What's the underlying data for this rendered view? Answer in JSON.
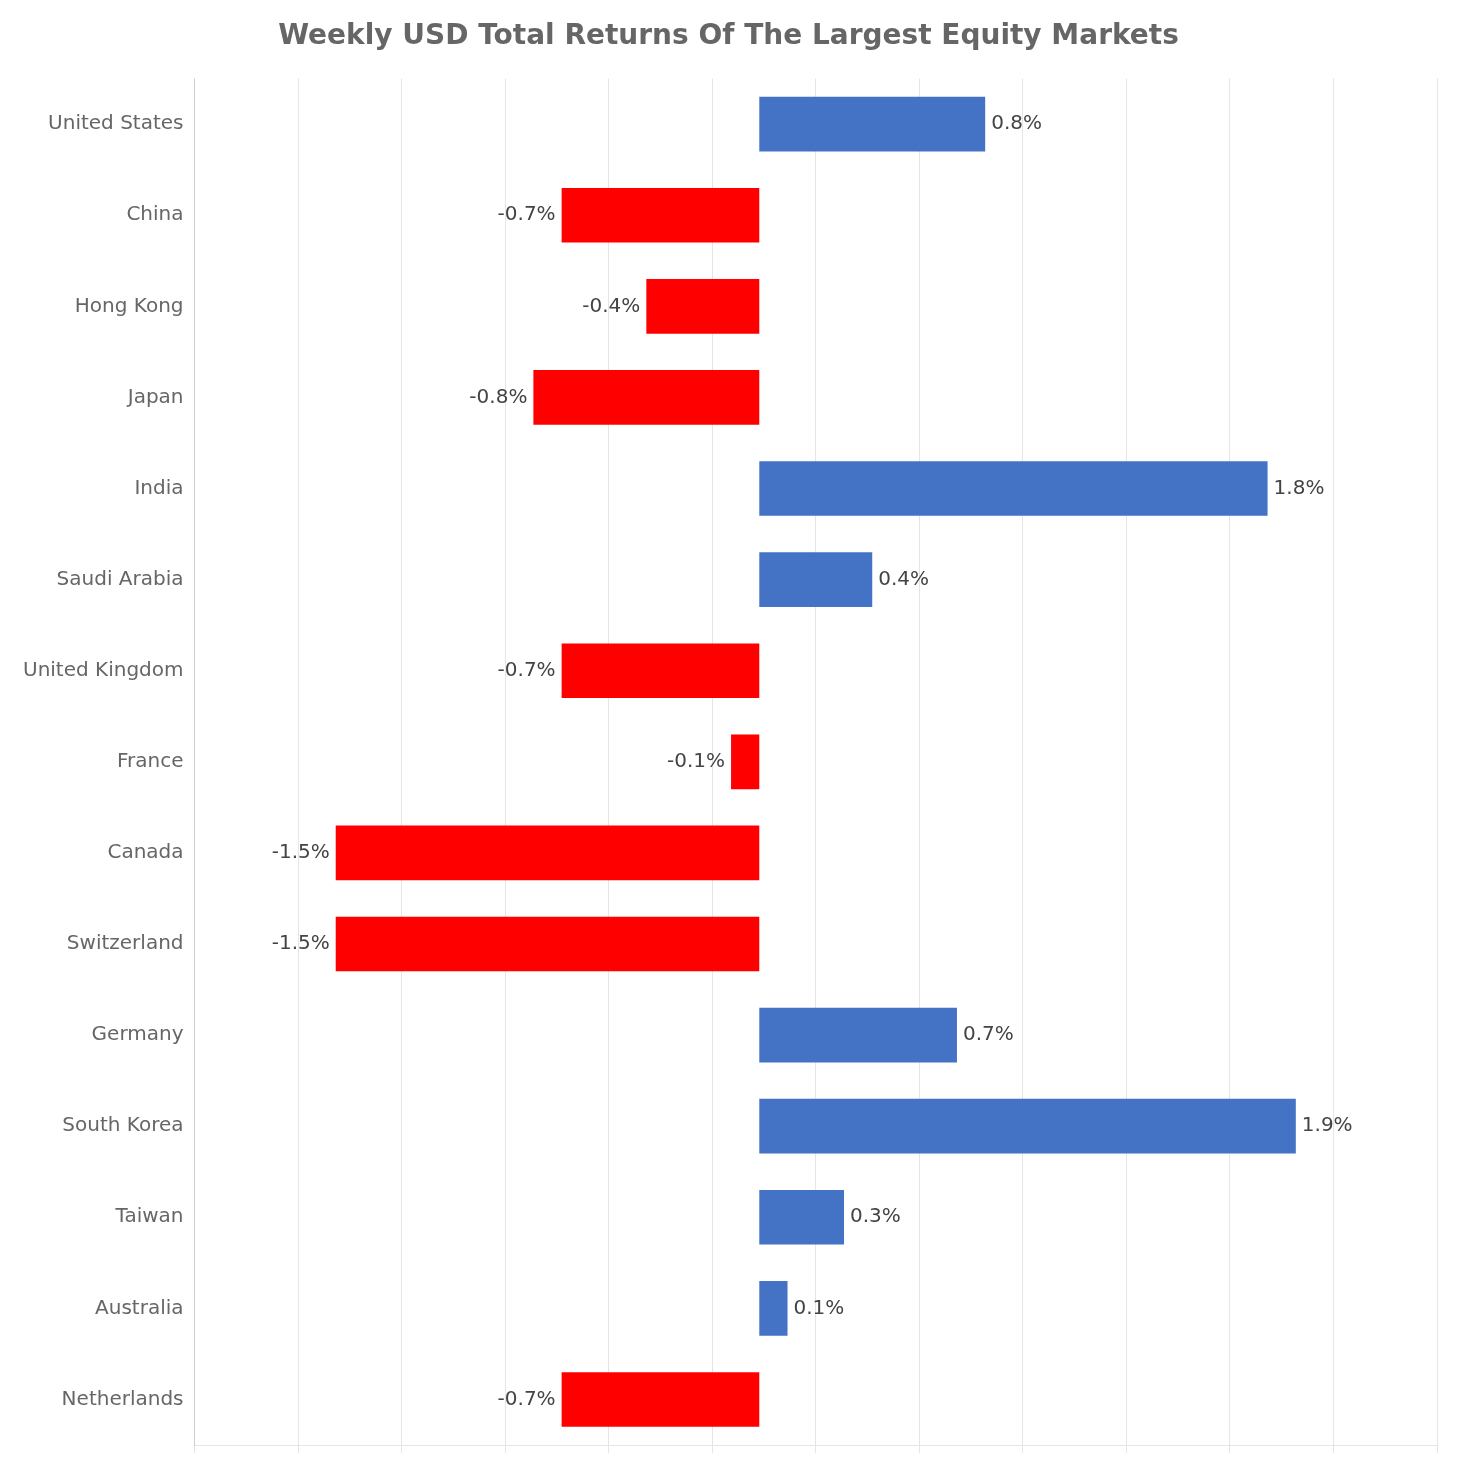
{
  "chart_data": {
    "type": "bar",
    "orientation": "horizontal",
    "title": "Weekly USD Total Returns Of The Largest Equity Markets",
    "categories": [
      "United States",
      "China",
      "Hong Kong",
      "Japan",
      "India",
      "Saudi Arabia",
      "United Kingdom",
      "France",
      "Canada",
      "Switzerland",
      "Germany",
      "South Korea",
      "Taiwan",
      "Australia",
      "Netherlands"
    ],
    "values": [
      0.8,
      -0.7,
      -0.4,
      -0.8,
      1.8,
      0.4,
      -0.7,
      -0.1,
      -1.5,
      -1.5,
      0.7,
      1.9,
      0.3,
      0.1,
      -0.7
    ],
    "value_labels": [
      "0.8%",
      "-0.7%",
      "-0.4%",
      "-0.8%",
      "1.8%",
      "0.4%",
      "-0.7%",
      "-0.1%",
      "-1.5%",
      "-1.5%",
      "0.7%",
      "1.9%",
      "0.3%",
      "0.1%",
      "-0.7%"
    ],
    "colors": [
      "#4472C4",
      "#FF0000",
      "#FF0000",
      "#FF0000",
      "#4472C4",
      "#4472C4",
      "#FF0000",
      "#FF0000",
      "#FF0000",
      "#FF0000",
      "#4472C4",
      "#4472C4",
      "#4472C4",
      "#4472C4",
      "#FF0000"
    ],
    "xlim": [
      -2.0,
      2.4
    ],
    "xticks": [
      -2.0,
      -1.6333333333333333,
      -1.2666666666666666,
      -0.9,
      -0.5333333333333333,
      -0.16666666666666666,
      0.2,
      0.5666666666666667,
      0.9333333333333333,
      1.3,
      1.6666666666666667,
      2.033333333333333,
      2.4
    ],
    "grid": true,
    "tick_labels": "y",
    "data_labels": true
  }
}
